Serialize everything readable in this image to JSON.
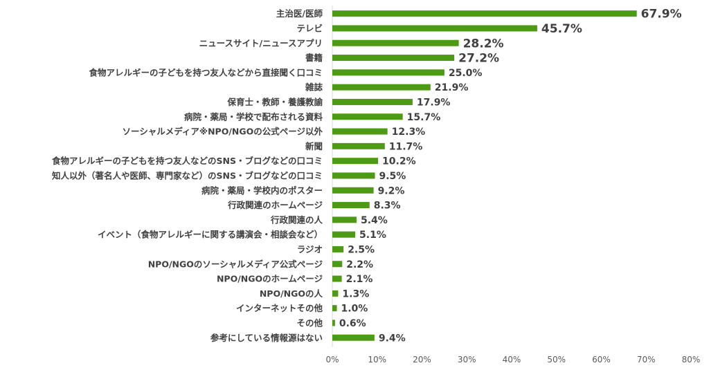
{
  "chart_data": {
    "type": "bar",
    "orientation": "horizontal",
    "categories": [
      "主治医/医師",
      "テレビ",
      "ニュースサイト/ニュースアプリ",
      "書籍",
      "食物アレルギーの子どもを持つ友人などから直接聞く口コミ",
      "雑誌",
      "保育士・教師・養護教諭",
      "病院・薬局・学校で配布される資料",
      "ソーシャルメディア※NPO/NGOの公式ページ以外",
      "新聞",
      "食物アレルギーの子どもを持つ友人などのSNS・ブログなどの口コミ",
      "知人以外（著名人や医師、専門家など）のSNS・ブログなどの口コミ",
      "病院・薬局・学校内のポスター",
      "行政関連のホームページ",
      "行政関連の人",
      "イベント（食物アレルギーに関する講演会・相談会など）",
      "ラジオ",
      "NPO/NGOのソーシャルメディア公式ページ",
      "NPO/NGOのホームページ",
      "NPO/NGOの人",
      "インターネットその他",
      "その他",
      "参考にしている情報源はない"
    ],
    "values": [
      67.9,
      45.7,
      28.2,
      27.2,
      25.0,
      21.9,
      17.9,
      15.7,
      12.3,
      11.7,
      10.2,
      9.5,
      9.2,
      8.3,
      5.4,
      5.1,
      2.5,
      2.2,
      2.1,
      1.3,
      1.0,
      0.6,
      9.4
    ],
    "value_labels": [
      "67.9%",
      "45.7%",
      "28.2%",
      "27.2%",
      "25.0%",
      "21.9%",
      "17.9%",
      "15.7%",
      "12.3%",
      "11.7%",
      "10.2%",
      "9.5%",
      "9.2%",
      "8.3%",
      "5.4%",
      "5.1%",
      "2.5%",
      "2.2%",
      "2.1%",
      "1.3%",
      "1.0%",
      "0.6%",
      "9.4%"
    ],
    "xlim": [
      0,
      80
    ],
    "xticks": [
      "0%",
      "10%",
      "20%",
      "30%",
      "40%",
      "50%",
      "60%",
      "70%",
      "80%"
    ],
    "title": "",
    "xlabel": "",
    "ylabel": "",
    "grid": false,
    "legend": "none",
    "bar_color": "#4d9a15",
    "text_color": "#404040"
  }
}
